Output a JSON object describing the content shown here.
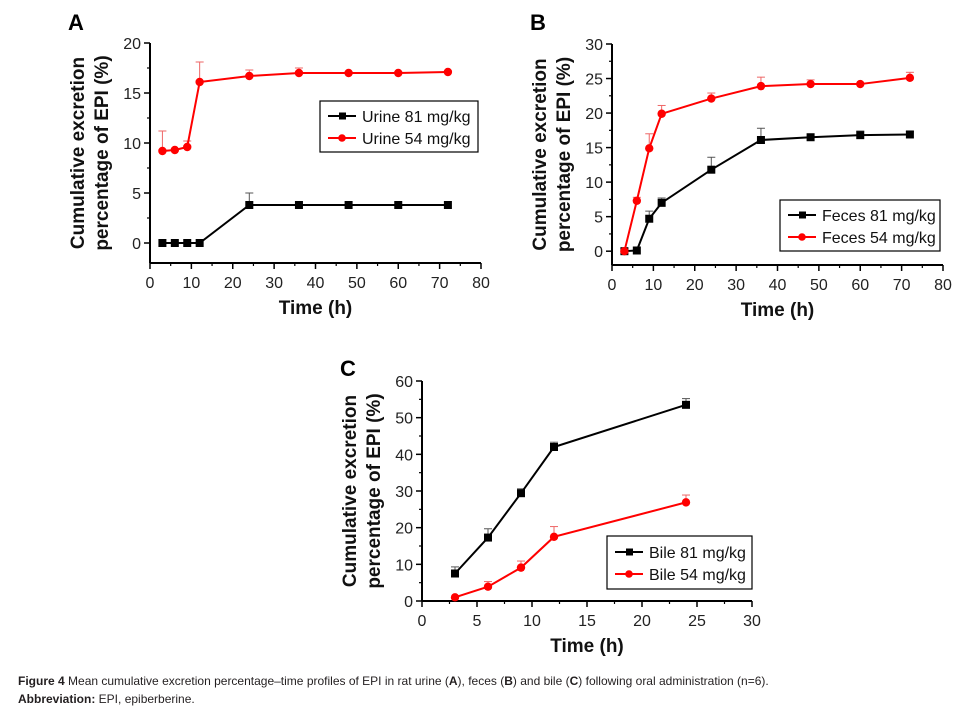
{
  "chart_data": [
    {
      "panel": "A",
      "type": "line",
      "title": "",
      "xlabel": "Time (h)",
      "ylabel_lines": [
        "Cumulative excretion",
        "percentage of EPI (%)"
      ],
      "xlim": [
        0,
        80
      ],
      "ylim": [
        -2,
        20
      ],
      "xticks": [
        0,
        10,
        20,
        30,
        40,
        50,
        60,
        70,
        80
      ],
      "yticks": [
        0,
        5,
        10,
        15,
        20
      ],
      "grid": false,
      "legend_position": "center-right",
      "series": [
        {
          "name": "Urine 81 mg/kg",
          "color": "#000000",
          "marker": "square",
          "x": [
            3,
            6,
            9,
            12,
            24,
            36,
            48,
            60,
            72
          ],
          "values": [
            0.0,
            0.0,
            0.0,
            0.0,
            3.8,
            3.8,
            3.8,
            3.8,
            3.8
          ],
          "error": [
            0,
            0,
            0,
            0,
            1.2,
            0,
            0,
            0,
            0
          ]
        },
        {
          "name": "Urine 54 mg/kg",
          "color": "#ff0000",
          "marker": "circle",
          "x": [
            3,
            6,
            9,
            12,
            24,
            36,
            48,
            60,
            72
          ],
          "values": [
            9.2,
            9.3,
            9.6,
            16.1,
            16.7,
            17.0,
            17.0,
            17.0,
            17.1
          ],
          "error": [
            2.0,
            0,
            0.6,
            2.0,
            0.6,
            0.5,
            0,
            0,
            0
          ]
        }
      ]
    },
    {
      "panel": "B",
      "type": "line",
      "title": "",
      "xlabel": "Time (h)",
      "ylabel_lines": [
        "Cumulative excretion",
        "percentage of EPI (%)"
      ],
      "xlim": [
        0,
        80
      ],
      "ylim": [
        -2,
        30
      ],
      "xticks": [
        0,
        10,
        20,
        30,
        40,
        50,
        60,
        70,
        80
      ],
      "yticks": [
        0,
        5,
        10,
        15,
        20,
        25,
        30
      ],
      "grid": false,
      "legend_position": "bottom-right",
      "series": [
        {
          "name": "Feces 81 mg/kg",
          "color": "#000000",
          "marker": "square",
          "x": [
            3,
            6,
            9,
            12,
            24,
            36,
            48,
            60,
            72
          ],
          "values": [
            0.0,
            0.1,
            4.7,
            7.0,
            11.8,
            16.1,
            16.5,
            16.8,
            16.9
          ],
          "error": [
            0,
            0,
            1.1,
            0.7,
            1.8,
            1.7,
            0,
            0.6,
            0.4
          ]
        },
        {
          "name": "Feces 54 mg/kg",
          "color": "#ff0000",
          "marker": "circle",
          "x": [
            3,
            6,
            9,
            12,
            24,
            36,
            48,
            60,
            72
          ],
          "values": [
            0.0,
            7.3,
            14.9,
            19.9,
            22.1,
            23.9,
            24.2,
            24.2,
            25.1
          ],
          "error": [
            0,
            0.5,
            2.1,
            1.2,
            0.8,
            1.3,
            0.6,
            0,
            0.8
          ]
        }
      ]
    },
    {
      "panel": "C",
      "type": "line",
      "title": "",
      "xlabel": "Time (h)",
      "ylabel_lines": [
        "Cumulative excretion",
        "percentage of EPI (%)"
      ],
      "xlim": [
        0,
        30
      ],
      "ylim": [
        0,
        60
      ],
      "xticks": [
        0,
        5,
        10,
        15,
        20,
        25,
        30
      ],
      "yticks": [
        0,
        10,
        20,
        30,
        40,
        50,
        60
      ],
      "grid": false,
      "legend_position": "bottom-right",
      "series": [
        {
          "name": "Bile 81 mg/kg",
          "color": "#000000",
          "marker": "square",
          "x": [
            3,
            6,
            9,
            12,
            24
          ],
          "values": [
            7.5,
            17.3,
            29.4,
            42.0,
            53.5
          ],
          "error": [
            1.8,
            2.4,
            1.2,
            1.3,
            1.7
          ]
        },
        {
          "name": "Bile 54 mg/kg",
          "color": "#ff0000",
          "marker": "circle",
          "x": [
            3,
            6,
            9,
            12,
            24
          ],
          "values": [
            1.0,
            3.9,
            9.1,
            17.5,
            26.9
          ],
          "error": [
            0,
            1.4,
            1.8,
            2.8,
            2.0
          ]
        }
      ]
    }
  ],
  "caption": {
    "figure_label": "Figure 4",
    "text_parts": [
      " Mean cumulative excretion percentage–time profiles of EPI in rat urine (",
      "A",
      "), feces (",
      "B",
      ") and bile (",
      "C",
      ") following oral administration (n=6)."
    ],
    "abbreviation_label": "Abbreviation:",
    "abbreviation_text": " EPI, epiberberine."
  }
}
